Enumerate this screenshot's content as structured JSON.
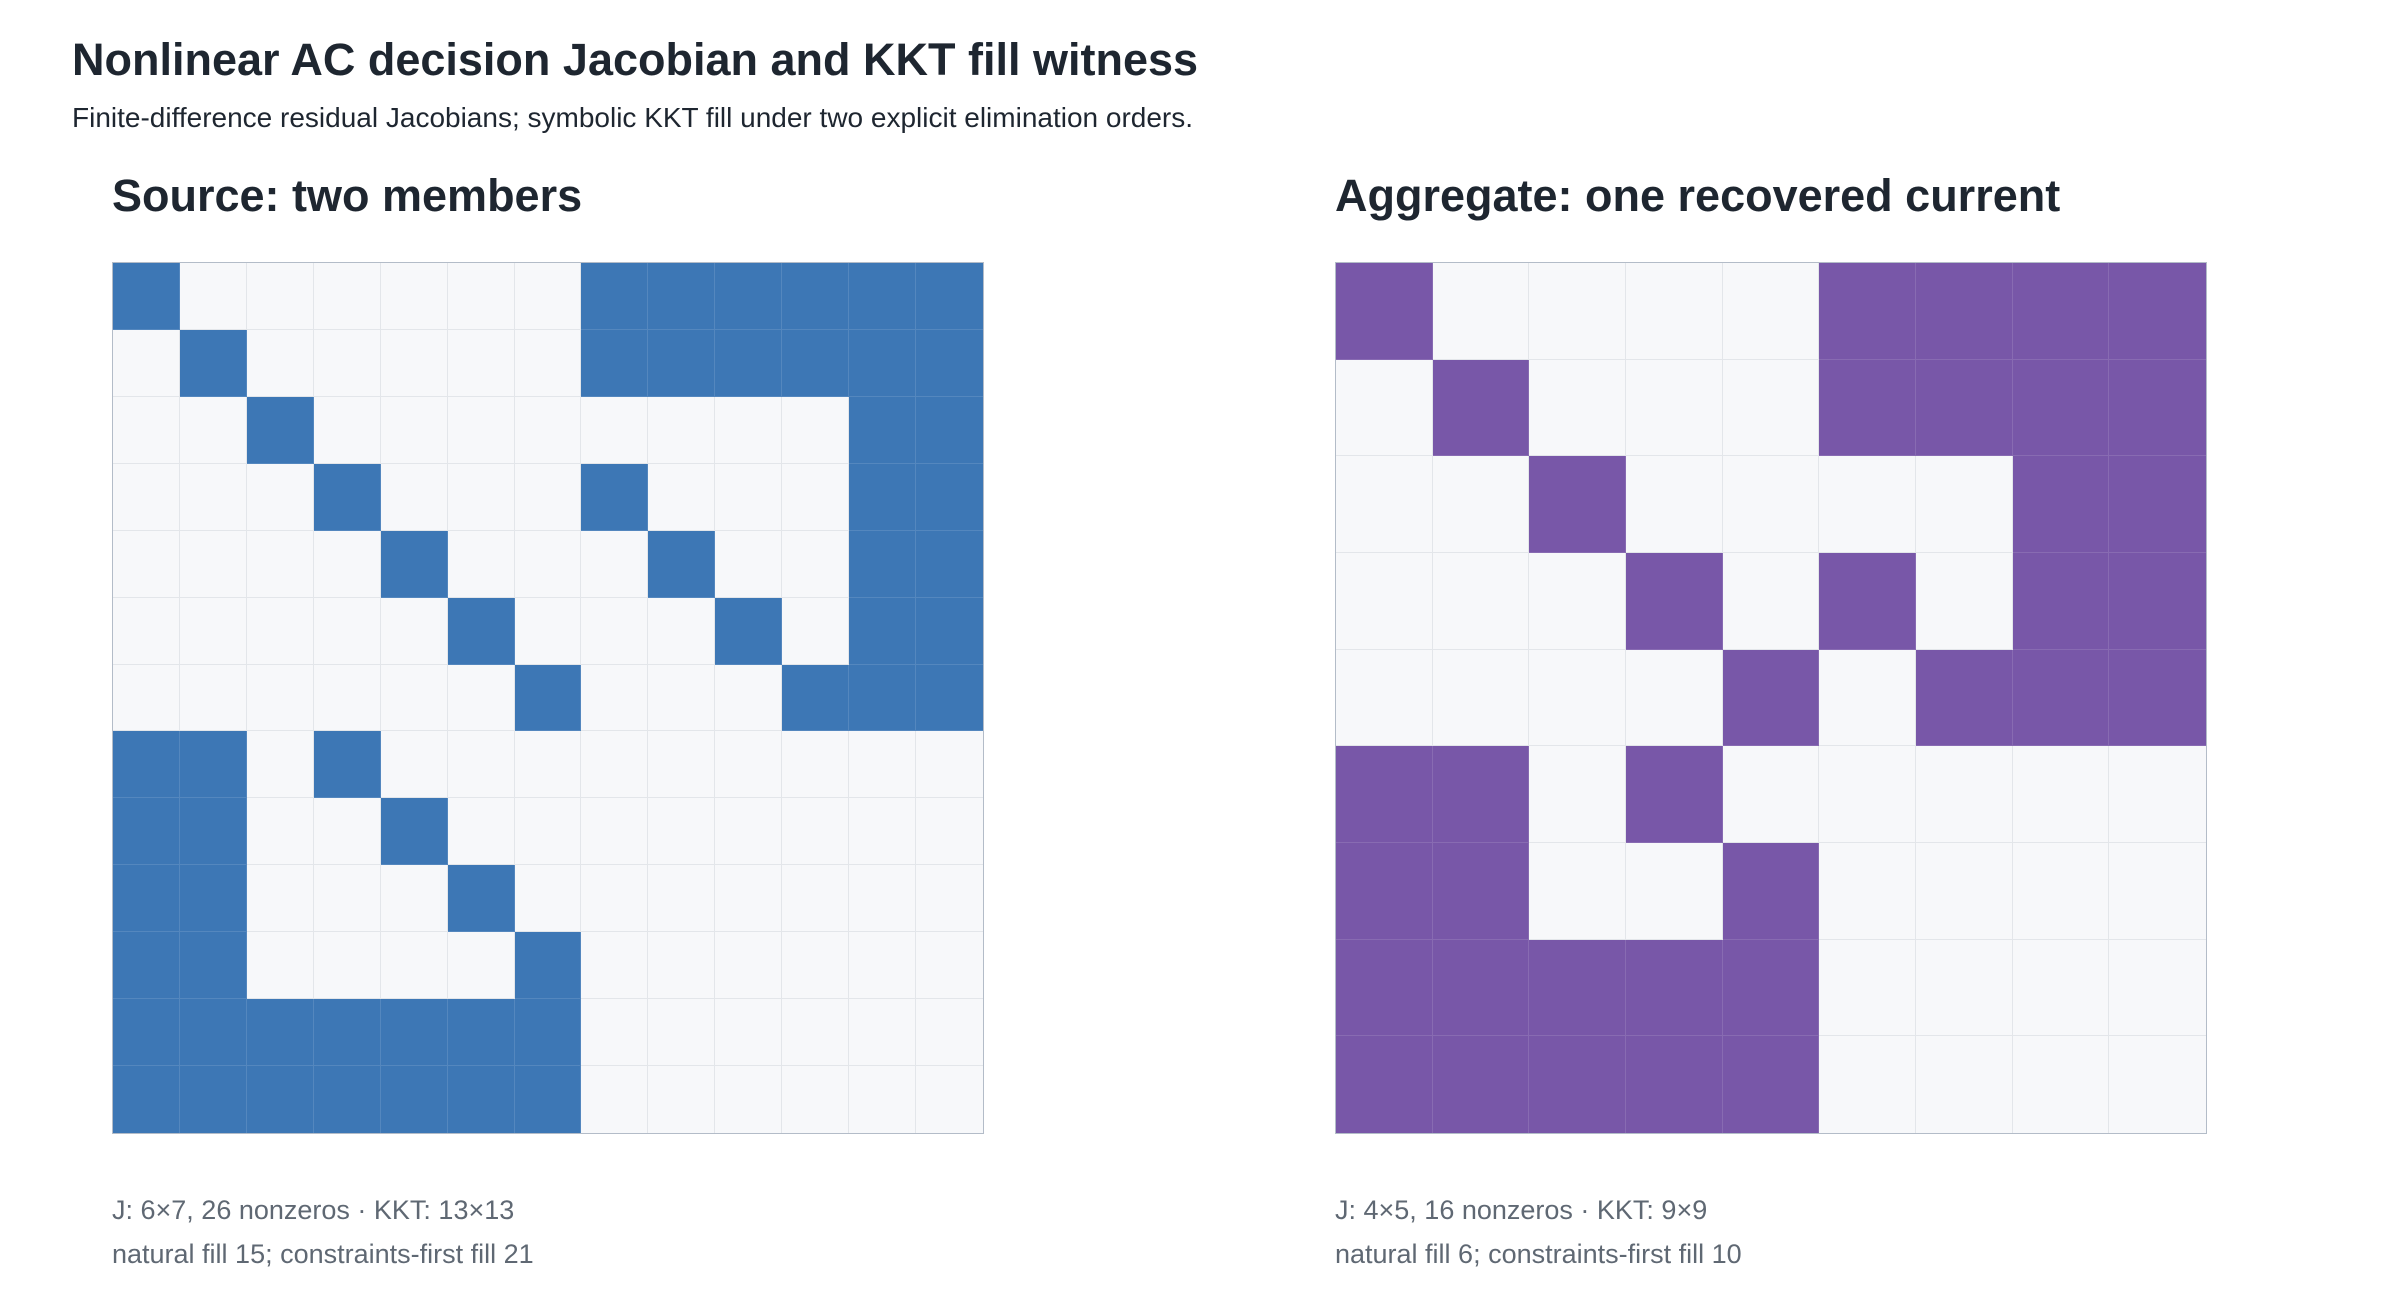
{
  "header": {
    "title": "Nonlinear AC decision Jacobian and KKT fill witness",
    "subtitle": "Finite-difference residual Jacobians; symbolic KKT fill under two explicit elimination orders."
  },
  "panels": [
    {
      "title": "Source: two members",
      "color": "#3d77b5",
      "size": 13,
      "matrix_rows": [
        "1000000111111",
        "0100000111111",
        "0010000000011",
        "0001000100011",
        "0000100010011",
        "0000010001011",
        "0000001000111",
        "1101000000000",
        "1100100000000",
        "1100010000000",
        "1100001000000",
        "1111111000000",
        "1111111000000"
      ],
      "caption_line1": "J: 6×7, 26 nonzeros · KKT: 13×13",
      "caption_line2": "natural fill 15; constraints-first fill 21"
    },
    {
      "title": "Aggregate: one recovered current",
      "color": "#7857a8",
      "size": 9,
      "matrix_rows": [
        "100001111",
        "010001111",
        "001000011",
        "000101011",
        "000010111",
        "110100000",
        "110010000",
        "111110000",
        "111110000"
      ],
      "caption_line1": "J: 4×5, 16 nonzeros · KKT: 9×9",
      "caption_line2": "natural fill 6; constraints-first fill 10"
    }
  ]
}
